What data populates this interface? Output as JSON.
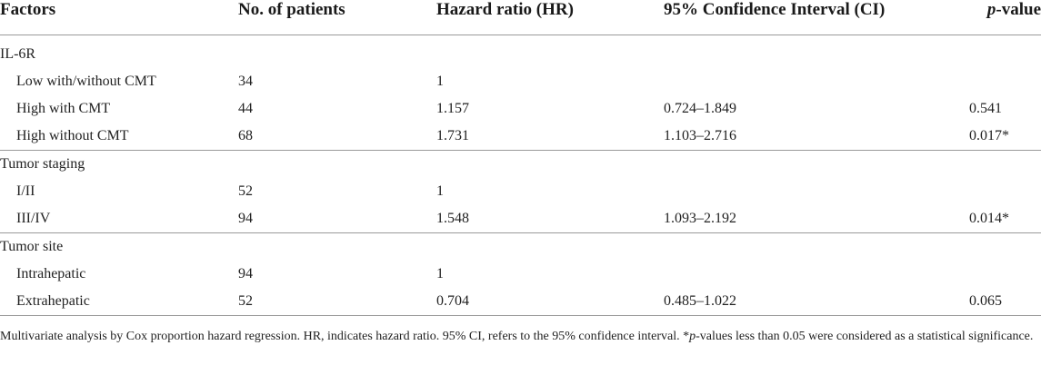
{
  "table": {
    "headers": {
      "factors": "Factors",
      "patients": "No. of patients",
      "hr": "Hazard ratio (HR)",
      "ci": "95% Confidence Interval (CI)",
      "p_italic": "p",
      "p_rest": "-value"
    },
    "groups": [
      {
        "label": "IL-6R",
        "rows": [
          {
            "factor": "Low with/without CMT",
            "patients": "34",
            "hr": "1",
            "ci": "",
            "p": ""
          },
          {
            "factor": "High with CMT",
            "patients": "44",
            "hr": "1.157",
            "ci": "0.724–1.849",
            "p": "0.541"
          },
          {
            "factor": "High without CMT",
            "patients": "68",
            "hr": "1.731",
            "ci": "1.103–2.716",
            "p": "0.017*"
          }
        ]
      },
      {
        "label": "Tumor staging",
        "rows": [
          {
            "factor": "I/II",
            "patients": "52",
            "hr": "1",
            "ci": "",
            "p": ""
          },
          {
            "factor": "III/IV",
            "patients": "94",
            "hr": "1.548",
            "ci": "1.093–2.192",
            "p": "0.014*"
          }
        ]
      },
      {
        "label": "Tumor site",
        "rows": [
          {
            "factor": "Intrahepatic",
            "patients": "94",
            "hr": "1",
            "ci": "",
            "p": ""
          },
          {
            "factor": "Extrahepatic",
            "patients": "52",
            "hr": "0.704",
            "ci": "0.485–1.022",
            "p": "0.065"
          }
        ]
      }
    ]
  },
  "footnote": {
    "part1": "Multivariate analysis by Cox proportion hazard regression. HR, indicates hazard ratio. 95% CI, refers to the 95% confidence interval. *",
    "p_italic": "p",
    "part2": "-values less than 0.05 were considered as a statistical significance."
  }
}
